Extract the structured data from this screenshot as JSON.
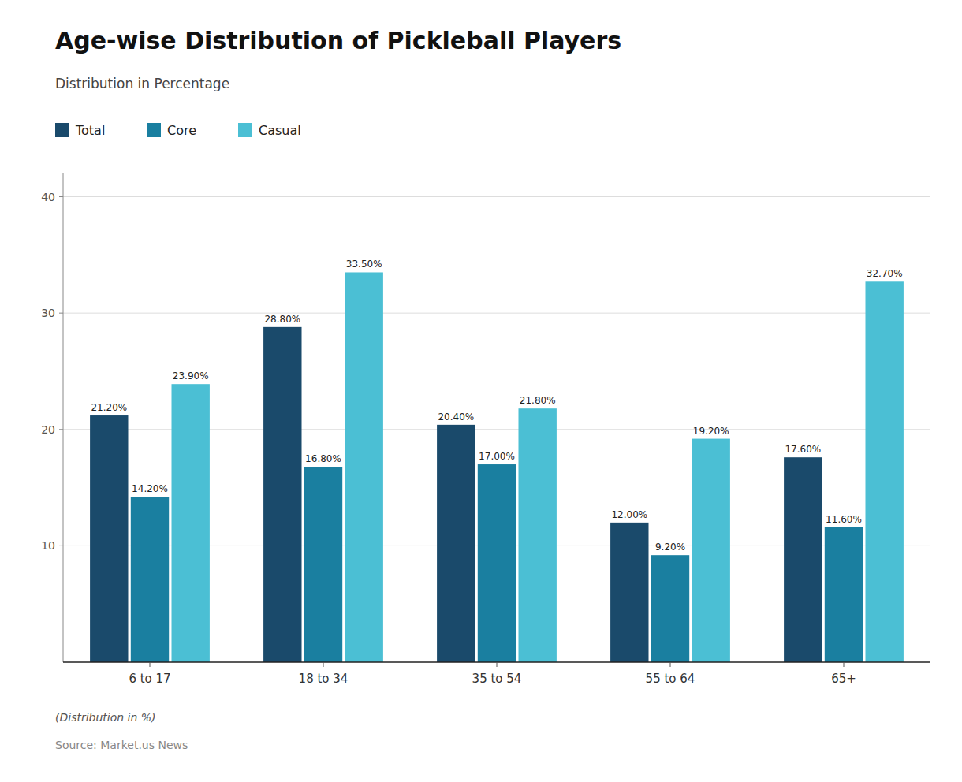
{
  "chart_data": {
    "type": "bar",
    "title": "Age-wise Distribution of Pickleball Players",
    "subtitle": "Distribution in Percentage",
    "annotations": [
      "(Distribution in %)",
      "Source: Market.us News"
    ],
    "categories": [
      "6 to 17",
      "18 to 34",
      "35 to 54",
      "55 to 64",
      "65+"
    ],
    "series": [
      {
        "name": "Total",
        "color": "#1a4a6b",
        "values": [
          21.2,
          28.8,
          20.4,
          12.0,
          17.6
        ],
        "value_labels": [
          "21.20%",
          "28.80%",
          "20.40%",
          "12.00%",
          "17.60%"
        ]
      },
      {
        "name": "Core",
        "color": "#1a7fa0",
        "values": [
          14.2,
          16.8,
          17.0,
          9.2,
          11.6
        ],
        "value_labels": [
          "14.20%",
          "16.80%",
          "17.00%",
          "9.20%",
          "11.60%"
        ]
      },
      {
        "name": "Casual",
        "color": "#4bbfd4",
        "values": [
          23.9,
          33.5,
          21.8,
          19.2,
          32.7
        ],
        "value_labels": [
          "23.90%",
          "33.50%",
          "21.80%",
          "19.20%",
          "32.70%"
        ]
      }
    ],
    "ylim": [
      0,
      42
    ],
    "yticks": [
      10,
      20,
      30,
      40
    ],
    "grid": true,
    "legend": "top-left",
    "data_labels": true
  }
}
